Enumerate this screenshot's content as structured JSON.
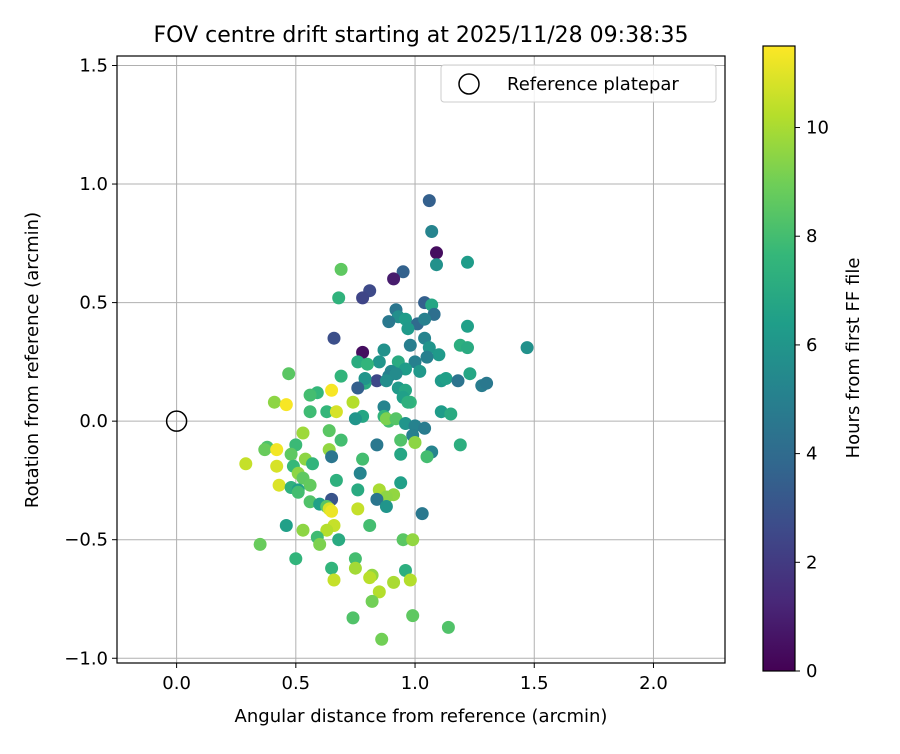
{
  "chart_data": {
    "type": "scatter",
    "title": "FOV centre drift starting at 2025/11/28 09:38:35",
    "xlabel": "Angular distance from reference (arcmin)",
    "ylabel": "Rotation from reference (arcmin)",
    "xlim": [
      -0.25,
      2.3
    ],
    "ylim": [
      -1.02,
      1.54
    ],
    "xticks": [
      0.0,
      0.5,
      1.0,
      1.5,
      2.0
    ],
    "xtick_labels": [
      "0.0",
      "0.5",
      "1.0",
      "1.5",
      "2.0"
    ],
    "yticks": [
      -1.0,
      -0.5,
      0.0,
      0.5,
      1.0,
      1.5
    ],
    "ytick_labels": [
      "−1.0",
      "−0.5",
      "0.0",
      "0.5",
      "1.0",
      "1.5"
    ],
    "grid": true,
    "legend": {
      "position": "top-right",
      "entries": [
        "Reference platepar"
      ]
    },
    "reference_point": {
      "x": 0.0,
      "y": 0.0
    },
    "colorbar": {
      "label": "Hours from first FF file",
      "range": [
        0,
        11.5
      ],
      "ticks": [
        0,
        2,
        4,
        6,
        8,
        10
      ],
      "tick_labels": [
        "0",
        "2",
        "4",
        "6",
        "8",
        "10"
      ],
      "colormap": "viridis",
      "colors": [
        "#440154",
        "#482878",
        "#3e4989",
        "#31688e",
        "#26828e",
        "#1f9e89",
        "#35b779",
        "#6ece58",
        "#b5de2b",
        "#fde725"
      ]
    },
    "points": [
      [
        1.06,
        0.93,
        3.5
      ],
      [
        1.07,
        0.8,
        5.2
      ],
      [
        1.09,
        0.71,
        0.4
      ],
      [
        1.09,
        0.66,
        5.8
      ],
      [
        0.69,
        0.64,
        8.6
      ],
      [
        1.22,
        0.67,
        6.3
      ],
      [
        0.95,
        0.63,
        3.6
      ],
      [
        0.81,
        0.55,
        2.6
      ],
      [
        0.78,
        0.52,
        2.4
      ],
      [
        0.91,
        0.6,
        0.9
      ],
      [
        0.68,
        0.52,
        7.4
      ],
      [
        1.04,
        0.5,
        3.5
      ],
      [
        1.07,
        0.49,
        6.8
      ],
      [
        0.66,
        0.35,
        2.8
      ],
      [
        1.08,
        0.45,
        4.2
      ],
      [
        0.92,
        0.47,
        4.5
      ],
      [
        0.93,
        0.44,
        5.7
      ],
      [
        0.89,
        0.42,
        4.6
      ],
      [
        0.96,
        0.43,
        6.3
      ],
      [
        1.01,
        0.41,
        4.0
      ],
      [
        1.04,
        0.43,
        5.0
      ],
      [
        0.97,
        0.39,
        6.2
      ],
      [
        1.22,
        0.4,
        6.5
      ],
      [
        1.04,
        0.35,
        5.2
      ],
      [
        1.47,
        0.31,
        5.8
      ],
      [
        1.06,
        0.31,
        6.0
      ],
      [
        0.98,
        0.32,
        4.9
      ],
      [
        1.19,
        0.32,
        7.2
      ],
      [
        1.22,
        0.31,
        7.0
      ],
      [
        0.87,
        0.3,
        5.8
      ],
      [
        0.78,
        0.29,
        0.4
      ],
      [
        1.1,
        0.28,
        6.2
      ],
      [
        1.05,
        0.27,
        5.0
      ],
      [
        0.76,
        0.25,
        7.1
      ],
      [
        0.85,
        0.25,
        6.0
      ],
      [
        0.93,
        0.25,
        7.0
      ],
      [
        0.8,
        0.24,
        7.5
      ],
      [
        1.0,
        0.25,
        5.0
      ],
      [
        0.96,
        0.22,
        6.3
      ],
      [
        1.02,
        0.21,
        6.1
      ],
      [
        0.9,
        0.21,
        5.4
      ],
      [
        0.89,
        0.19,
        5.0
      ],
      [
        0.92,
        0.2,
        5.5
      ],
      [
        1.23,
        0.2,
        6.8
      ],
      [
        0.47,
        0.2,
        8.5
      ],
      [
        0.69,
        0.19,
        7.5
      ],
      [
        0.84,
        0.17,
        2.5
      ],
      [
        1.11,
        0.17,
        6.2
      ],
      [
        1.13,
        0.18,
        6.5
      ],
      [
        1.18,
        0.17,
        4.4
      ],
      [
        1.28,
        0.15,
        4.8
      ],
      [
        1.3,
        0.16,
        4.6
      ],
      [
        0.79,
        0.16,
        7.0
      ],
      [
        0.79,
        0.18,
        6.0
      ],
      [
        0.88,
        0.17,
        5.6
      ],
      [
        0.93,
        0.14,
        6.2
      ],
      [
        0.96,
        0.13,
        6.8
      ],
      [
        0.76,
        0.14,
        3.5
      ],
      [
        0.59,
        0.12,
        7.6
      ],
      [
        0.56,
        0.11,
        8.0
      ],
      [
        0.65,
        0.13,
        11.4
      ],
      [
        0.95,
        0.1,
        6.5
      ],
      [
        0.98,
        0.08,
        7.5
      ],
      [
        0.97,
        0.08,
        7.3
      ],
      [
        0.74,
        0.08,
        10.2
      ],
      [
        0.41,
        0.08,
        9.5
      ],
      [
        0.46,
        0.07,
        11.4
      ],
      [
        0.87,
        0.06,
        5.2
      ],
      [
        0.56,
        0.04,
        7.9
      ],
      [
        0.63,
        0.04,
        7.6
      ],
      [
        0.67,
        0.04,
        10.8
      ],
      [
        1.11,
        0.04,
        6.3
      ],
      [
        1.15,
        0.03,
        7.0
      ],
      [
        0.78,
        0.02,
        6.8
      ],
      [
        0.75,
        0.01,
        6.0
      ],
      [
        0.87,
        0.02,
        7.5
      ],
      [
        0.89,
        0.0,
        8.0
      ],
      [
        0.88,
        0.01,
        9.2
      ],
      [
        0.92,
        0.01,
        8.4
      ],
      [
        0.96,
        -0.01,
        6.0
      ],
      [
        1.0,
        -0.02,
        5.1
      ],
      [
        1.04,
        -0.03,
        4.8
      ],
      [
        0.64,
        -0.04,
        8.5
      ],
      [
        0.53,
        -0.05,
        9.8
      ],
      [
        0.99,
        -0.06,
        5.0
      ],
      [
        0.94,
        -0.08,
        8.3
      ],
      [
        0.69,
        -0.08,
        8.0
      ],
      [
        0.84,
        -0.1,
        4.6
      ],
      [
        0.5,
        -0.1,
        7.8
      ],
      [
        0.38,
        -0.11,
        8.2
      ],
      [
        0.37,
        -0.12,
        8.8
      ],
      [
        0.42,
        -0.12,
        11.3
      ],
      [
        1.0,
        -0.09,
        9.5
      ],
      [
        1.19,
        -0.1,
        7.2
      ],
      [
        0.64,
        -0.12,
        9.6
      ],
      [
        0.48,
        -0.14,
        8.6
      ],
      [
        1.07,
        -0.13,
        5.2
      ],
      [
        1.05,
        -0.15,
        8.0
      ],
      [
        0.65,
        -0.15,
        4.5
      ],
      [
        0.94,
        -0.14,
        6.8
      ],
      [
        0.54,
        -0.16,
        9.5
      ],
      [
        0.57,
        -0.18,
        7.5
      ],
      [
        0.78,
        -0.16,
        8.0
      ],
      [
        0.29,
        -0.18,
        10.5
      ],
      [
        0.42,
        -0.19,
        10.8
      ],
      [
        0.49,
        -0.19,
        7.7
      ],
      [
        0.51,
        -0.22,
        9.5
      ],
      [
        0.77,
        -0.22,
        5.2
      ],
      [
        0.53,
        -0.24,
        8.6
      ],
      [
        0.67,
        -0.25,
        7.3
      ],
      [
        0.43,
        -0.27,
        10.9
      ],
      [
        0.56,
        -0.27,
        8.7
      ],
      [
        0.48,
        -0.28,
        7.3
      ],
      [
        0.94,
        -0.26,
        6.5
      ],
      [
        0.51,
        -0.29,
        6.5
      ],
      [
        0.76,
        -0.29,
        7.0
      ],
      [
        0.85,
        -0.29,
        10.0
      ],
      [
        0.91,
        -0.31,
        9.6
      ],
      [
        0.51,
        -0.3,
        8.0
      ],
      [
        0.88,
        -0.32,
        9.5
      ],
      [
        0.65,
        -0.33,
        3.0
      ],
      [
        0.84,
        -0.33,
        4.5
      ],
      [
        0.56,
        -0.34,
        8.3
      ],
      [
        0.6,
        -0.35,
        6.5
      ],
      [
        0.88,
        -0.36,
        6.0
      ],
      [
        0.63,
        -0.36,
        8.5
      ],
      [
        0.64,
        -0.37,
        10.8
      ],
      [
        0.76,
        -0.37,
        10.5
      ],
      [
        0.65,
        -0.38,
        11.2
      ],
      [
        1.03,
        -0.39,
        4.6
      ],
      [
        0.46,
        -0.44,
        6.5
      ],
      [
        0.81,
        -0.44,
        8.0
      ],
      [
        0.66,
        -0.44,
        10.5
      ],
      [
        0.63,
        -0.46,
        10.2
      ],
      [
        0.53,
        -0.46,
        9.5
      ],
      [
        0.59,
        -0.49,
        7.9
      ],
      [
        0.68,
        -0.5,
        7.0
      ],
      [
        0.95,
        -0.5,
        8.5
      ],
      [
        0.99,
        -0.5,
        9.6
      ],
      [
        0.35,
        -0.52,
        8.8
      ],
      [
        0.6,
        -0.52,
        9.2
      ],
      [
        0.5,
        -0.58,
        7.5
      ],
      [
        0.75,
        -0.58,
        8.0
      ],
      [
        0.75,
        -0.62,
        9.9
      ],
      [
        0.65,
        -0.62,
        7.5
      ],
      [
        0.96,
        -0.63,
        7.2
      ],
      [
        0.82,
        -0.65,
        9.6
      ],
      [
        0.81,
        -0.66,
        10.3
      ],
      [
        0.66,
        -0.67,
        10.5
      ],
      [
        0.91,
        -0.68,
        10.0
      ],
      [
        0.98,
        -0.67,
        10.2
      ],
      [
        0.85,
        -0.72,
        10.2
      ],
      [
        0.82,
        -0.76,
        9.0
      ],
      [
        0.74,
        -0.83,
        8.3
      ],
      [
        0.99,
        -0.82,
        8.6
      ],
      [
        1.14,
        -0.87,
        8.3
      ],
      [
        0.86,
        -0.92,
        9.0
      ]
    ]
  }
}
